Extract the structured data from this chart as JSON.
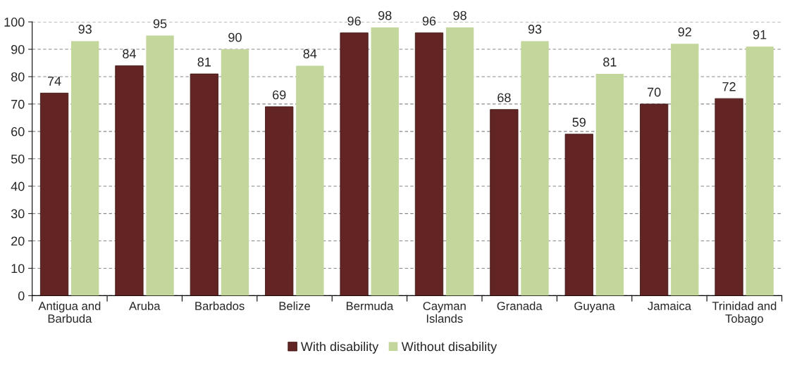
{
  "chart_data": {
    "type": "bar",
    "categories": [
      "Antigua and\nBarbuda",
      "Aruba",
      "Barbados",
      "Belize",
      "Bermuda",
      "Cayman\nIslands",
      "Granada",
      "Guyana",
      "Jamaica",
      "Trinidad and\nTobago"
    ],
    "series": [
      {
        "name": "With disability",
        "color": "#632523",
        "values": [
          74,
          84,
          81,
          69,
          96,
          96,
          68,
          59,
          70,
          72
        ]
      },
      {
        "name": "Without disability",
        "color": "#c3d69b",
        "values": [
          93,
          95,
          90,
          84,
          98,
          98,
          93,
          81,
          92,
          91
        ]
      }
    ],
    "ylim": [
      0,
      100
    ],
    "yticks": [
      0,
      10,
      20,
      30,
      40,
      50,
      60,
      70,
      80,
      90,
      100
    ],
    "grid": "y",
    "legend": "bottom",
    "data_labels": true
  }
}
